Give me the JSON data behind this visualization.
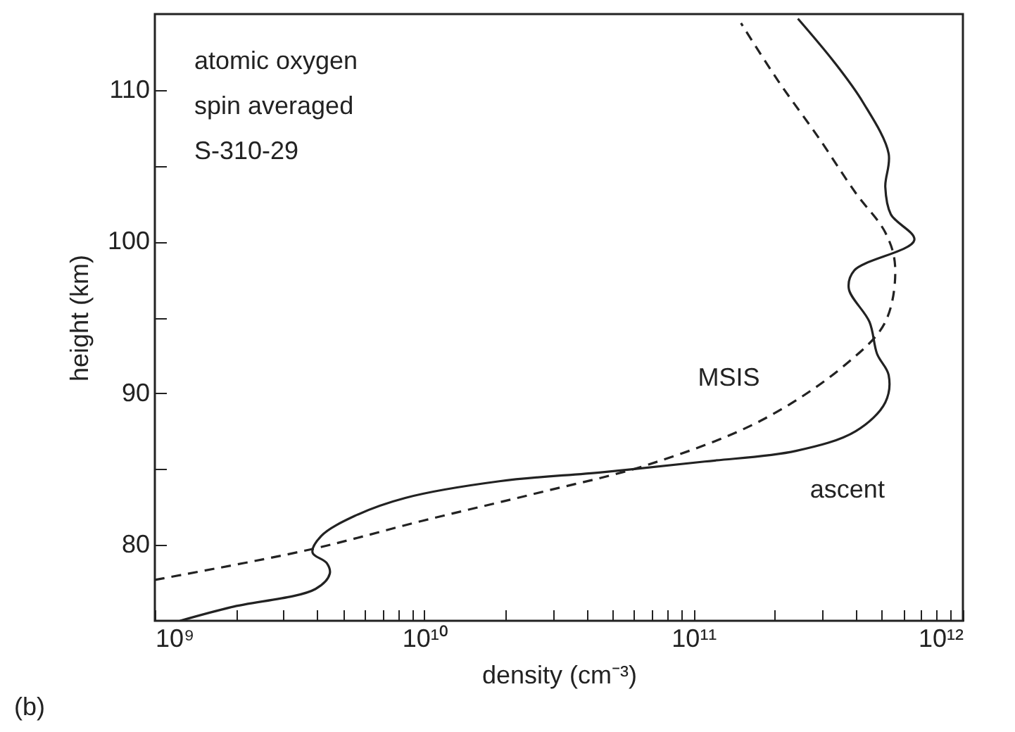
{
  "chart_data": {
    "type": "line",
    "xlabel": "density (cm⁻³)",
    "ylabel": "height (km)",
    "log": "x",
    "grid": false,
    "marker": "none",
    "xlim": [
      1000000000.0,
      1000000000000.0
    ],
    "ylim": [
      75,
      115
    ],
    "xticks": [
      {
        "value": 1000000000.0,
        "label": "10⁹"
      },
      {
        "value": 2000000000.0,
        "label": null
      },
      {
        "value": 3000000000.0,
        "label": null
      },
      {
        "value": 4000000000.0,
        "label": null
      },
      {
        "value": 5000000000.0,
        "label": null
      },
      {
        "value": 6000000000.0,
        "label": null
      },
      {
        "value": 7000000000.0,
        "label": null
      },
      {
        "value": 8000000000.0,
        "label": null
      },
      {
        "value": 9000000000.0,
        "label": null
      },
      {
        "value": 10000000000.0,
        "label": "10¹⁰"
      },
      {
        "value": 20000000000.0,
        "label": null
      },
      {
        "value": 30000000000.0,
        "label": null
      },
      {
        "value": 40000000000.0,
        "label": null
      },
      {
        "value": 50000000000.0,
        "label": null
      },
      {
        "value": 60000000000.0,
        "label": null
      },
      {
        "value": 70000000000.0,
        "label": null
      },
      {
        "value": 80000000000.0,
        "label": null
      },
      {
        "value": 90000000000.0,
        "label": null
      },
      {
        "value": 100000000000.0,
        "label": "10¹¹"
      },
      {
        "value": 200000000000.0,
        "label": null
      },
      {
        "value": 300000000000.0,
        "label": null
      },
      {
        "value": 400000000000.0,
        "label": null
      },
      {
        "value": 500000000000.0,
        "label": null
      },
      {
        "value": 600000000000.0,
        "label": null
      },
      {
        "value": 700000000000.0,
        "label": null
      },
      {
        "value": 800000000000.0,
        "label": null
      },
      {
        "value": 900000000000.0,
        "label": null
      },
      {
        "value": 1000000000000.0,
        "label": "10¹²"
      }
    ],
    "yticks": [
      80,
      {
        "value": 85,
        "label": null
      },
      90,
      {
        "value": 95,
        "label": null
      },
      100,
      {
        "value": 105,
        "label": null
      },
      110
    ],
    "series": [
      {
        "name": "ascent",
        "color": "#222222",
        "line_style": "solid",
        "x": [
          1240000000.0,
          1920000000.0,
          3950000000.0,
          4460000000.0,
          4350000000.0,
          3850000000.0,
          4150000000.0,
          5500000000.0,
          8500000000.0,
          19000000000.0,
          46000000000.0,
          110000000000.0,
          240000000000.0,
          400000000000.0,
          515000000000.0,
          530000000000.0,
          480000000000.0,
          450000000000.0,
          377000000000.0,
          395000000000.0,
          660000000000.0,
          540000000000.0,
          515000000000.0,
          530000000000.0,
          425000000000.0,
          334000000000.0,
          244000000000.0
        ],
        "values": [
          75,
          75.9,
          77.1,
          78.1,
          78.8,
          79.5,
          80.6,
          81.9,
          83.1,
          84.2,
          84.8,
          85.5,
          86.2,
          87.5,
          89.4,
          91.2,
          92.6,
          94.7,
          96.9,
          98.1,
          100.1,
          101.8,
          103.6,
          105.8,
          109.2,
          111.8,
          114.7
        ]
      },
      {
        "name": "MSIS",
        "color": "#222222",
        "line_style": "dashed",
        "x": [
          1000000000.0,
          3770000000.0,
          9900000000.0,
          26000000000.0,
          68000000000.0,
          178000000000.0,
          367000000000.0,
          515000000000.0,
          560000000000.0,
          515000000000.0,
          400000000000.0,
          290000000000.0,
          206000000000.0,
          150000000000.0
        ],
        "values": [
          77.7,
          79.7,
          81.6,
          83.4,
          85.3,
          88.2,
          91.9,
          94.7,
          98.4,
          100.6,
          103.2,
          106.9,
          110.6,
          114.4
        ]
      }
    ],
    "annotations": [
      "atomic oxygen",
      "spin averaged",
      "S-310-29",
      "(b)"
    ]
  }
}
